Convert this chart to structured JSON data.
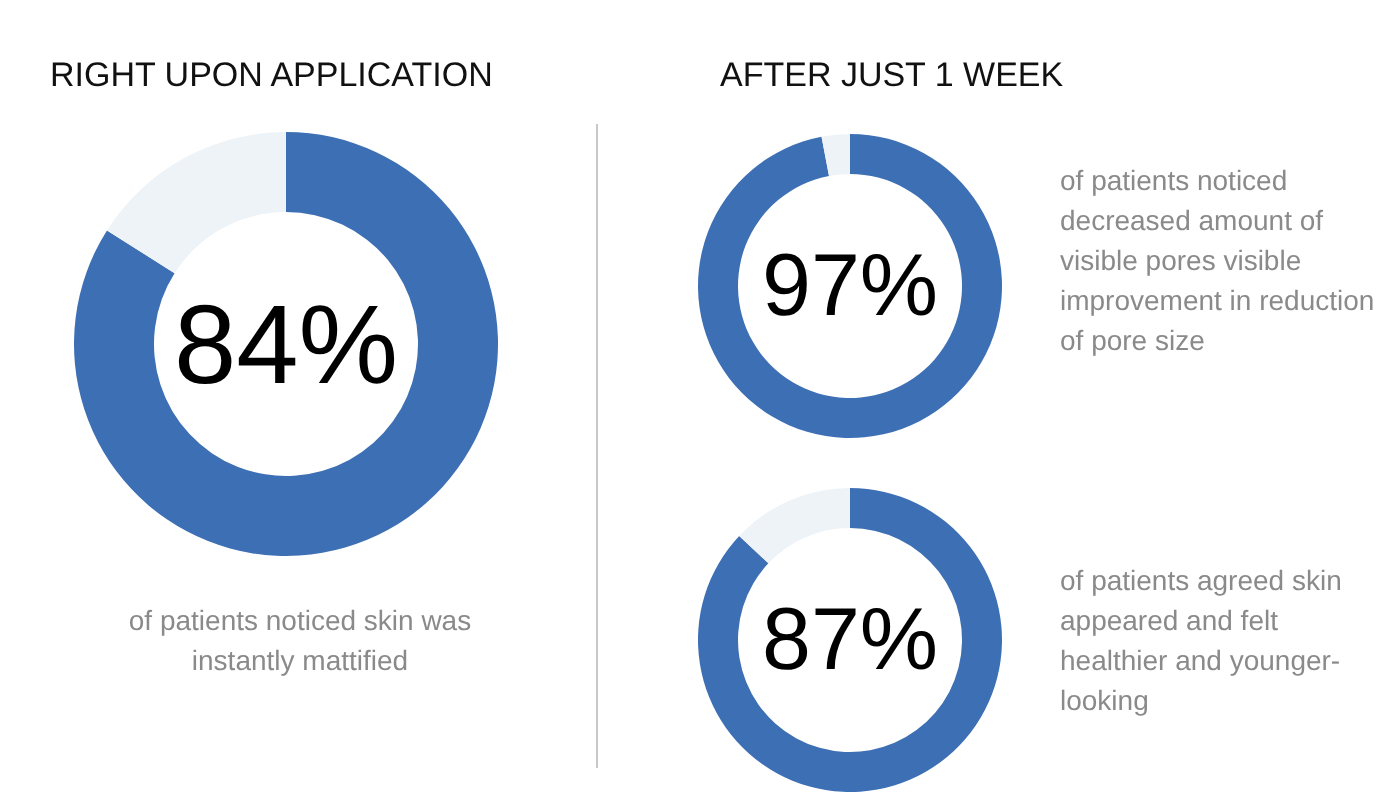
{
  "chart_data": [
    {
      "type": "donut",
      "title": "RIGHT UPON APPLICATION",
      "categories": [
        null,
        null
      ],
      "values": [
        84,
        16
      ],
      "colors": [
        "#3d6fb4",
        "#eef3f8"
      ],
      "value_labels": [
        "84%",
        null
      ],
      "annotations": [
        "of patients noticed skin was instantly mattified"
      ]
    },
    {
      "type": "donut",
      "title": "AFTER JUST 1 WEEK",
      "categories": [
        null,
        null
      ],
      "values": [
        97,
        3
      ],
      "colors": [
        "#3d6fb4",
        "#eef3f8"
      ],
      "value_labels": [
        "97%",
        null
      ],
      "annotations": [
        "of patients noticed decreased amount of visible pores visible improvement in reduction of pore size"
      ]
    },
    {
      "type": "donut",
      "categories": [
        null,
        null
      ],
      "values": [
        87,
        13
      ],
      "colors": [
        "#3d6fb4",
        "#eef3f8"
      ],
      "value_labels": [
        "87%",
        null
      ],
      "annotations": [
        "of patients agreed skin appeared and felt healthier and younger-looking"
      ]
    }
  ]
}
